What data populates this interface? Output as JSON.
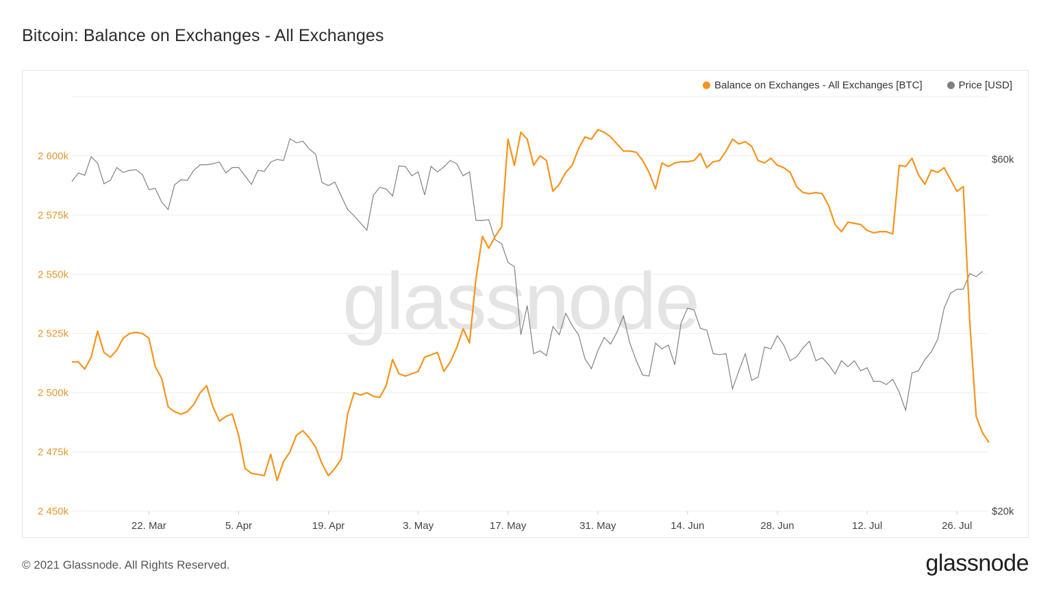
{
  "title": "Bitcoin: Balance on Exchanges - All Exchanges",
  "footer": {
    "copyright": "© 2021 Glassnode. All Rights Reserved.",
    "logo": "glassnode"
  },
  "watermark": "glassnode",
  "chart_data": {
    "type": "line",
    "title": "Bitcoin: Balance on Exchanges - All Exchanges",
    "legend_position": "top-right",
    "grid": true,
    "x_tick_labels": [
      "22. Mar",
      "5. Apr",
      "19. Apr",
      "3. May",
      "17. May",
      "31. May",
      "14. Jun",
      "28. Jun",
      "12. Jul",
      "26. Jul"
    ],
    "x_tick_index": [
      12,
      26,
      40,
      54,
      68,
      82,
      96,
      110,
      124,
      138
    ],
    "y_left": {
      "ticks": [
        2450000,
        2475000,
        2500000,
        2525000,
        2550000,
        2575000,
        2600000
      ],
      "tick_labels": [
        "2 450k",
        "2 475k",
        "2 500k",
        "2 525k",
        "2 550k",
        "2 575k",
        "2 600k"
      ],
      "range": [
        2450000,
        2625000
      ]
    },
    "y_right": {
      "scale": "log",
      "ticks": [
        20000,
        60000
      ],
      "tick_labels": [
        "$20k",
        "$60k"
      ],
      "range": [
        20000,
        73000
      ]
    },
    "colors": {
      "balance": "#f7931a",
      "price": "#808080",
      "left_axis": "#e8962e"
    },
    "series": [
      {
        "name": "Balance on Exchanges - All Exchanges [BTC]",
        "axis": "left",
        "color": "#f7931a",
        "start_date": "2021-03-10",
        "values": [
          2513000,
          2513000,
          2510000,
          2515000,
          2526000,
          2517000,
          2515000,
          2518000,
          2523000,
          2525000,
          2525500,
          2525000,
          2523000,
          2511000,
          2506000,
          2494000,
          2492000,
          2491000,
          2492000,
          2495000,
          2500000,
          2503000,
          2494000,
          2488000,
          2490000,
          2491000,
          2482000,
          2468000,
          2466000,
          2465500,
          2465000,
          2474000,
          2463000,
          2471000,
          2475000,
          2482000,
          2484000,
          2481000,
          2477000,
          2470000,
          2465000,
          2468000,
          2472000,
          2491000,
          2500000,
          2499000,
          2500000,
          2498500,
          2498000,
          2503000,
          2514000,
          2508000,
          2507000,
          2508000,
          2509000,
          2515000,
          2516000,
          2517000,
          2509000,
          2513000,
          2519000,
          2527000,
          2521000,
          2548000,
          2566000,
          2561000,
          2566000,
          2570000,
          2607000,
          2596000,
          2610000,
          2607000,
          2596000,
          2600000,
          2598000,
          2585000,
          2588000,
          2593000,
          2596000,
          2603000,
          2608000,
          2607000,
          2611000,
          2610000,
          2608000,
          2605000,
          2602000,
          2602000,
          2601500,
          2598000,
          2593000,
          2586000,
          2597000,
          2595500,
          2597000,
          2597500,
          2597500,
          2598000,
          2601000,
          2595000,
          2597500,
          2598000,
          2602000,
          2607000,
          2605000,
          2606000,
          2604000,
          2598000,
          2597000,
          2599000,
          2596000,
          2595000,
          2593000,
          2587000,
          2584500,
          2584000,
          2584500,
          2584000,
          2579000,
          2571000,
          2568000,
          2572000,
          2571500,
          2571000,
          2568500,
          2567500,
          2568000,
          2568000,
          2567000,
          2596000,
          2595500,
          2599000,
          2592000,
          2588000,
          2594000,
          2593000,
          2595000,
          2590000,
          2585000,
          2587000,
          2530000,
          2490000,
          2483000,
          2479000
        ]
      },
      {
        "name": "Price [USD]",
        "axis": "right",
        "color": "#808080",
        "start_date": "2021-03-10",
        "values": [
          56000,
          57500,
          57100,
          60500,
          59300,
          55600,
          56200,
          58500,
          57600,
          58000,
          58100,
          57200,
          54600,
          54800,
          52500,
          51300,
          55400,
          56300,
          56200,
          58000,
          59000,
          59000,
          59200,
          59500,
          57500,
          58500,
          58500,
          57000,
          55500,
          58000,
          57800,
          59500,
          60000,
          59800,
          64000,
          63200,
          63500,
          62000,
          61000,
          55800,
          55300,
          55900,
          53500,
          51300,
          50300,
          49200,
          48100,
          53600,
          55000,
          54700,
          53500,
          58800,
          58700,
          57000,
          57700,
          53700,
          58700,
          57700,
          58600,
          59800,
          59200,
          57000,
          57700,
          49600,
          49600,
          49700,
          46700,
          46100,
          43500,
          42900,
          34700,
          38000,
          32700,
          33000,
          32500,
          35600,
          34700,
          37100,
          35700,
          34700,
          32200,
          31200,
          33000,
          34400,
          33700,
          35000,
          36800,
          33800,
          32000,
          30600,
          30500,
          33800,
          33200,
          33600,
          31600,
          36000,
          37700,
          37500,
          35400,
          35200,
          32700,
          32600,
          32700,
          29300,
          31000,
          32700,
          30100,
          30400,
          33400,
          33200,
          34600,
          33600,
          32000,
          32400,
          33300,
          34000,
          32000,
          32300,
          31600,
          30700,
          32000,
          31400,
          32000,
          31000,
          31300,
          30000,
          30000,
          29700,
          30200,
          29000,
          27400,
          30800,
          31000,
          32100,
          32900,
          34200,
          37700,
          39500,
          40000,
          40000,
          42000,
          41600,
          42300
        ]
      }
    ]
  }
}
